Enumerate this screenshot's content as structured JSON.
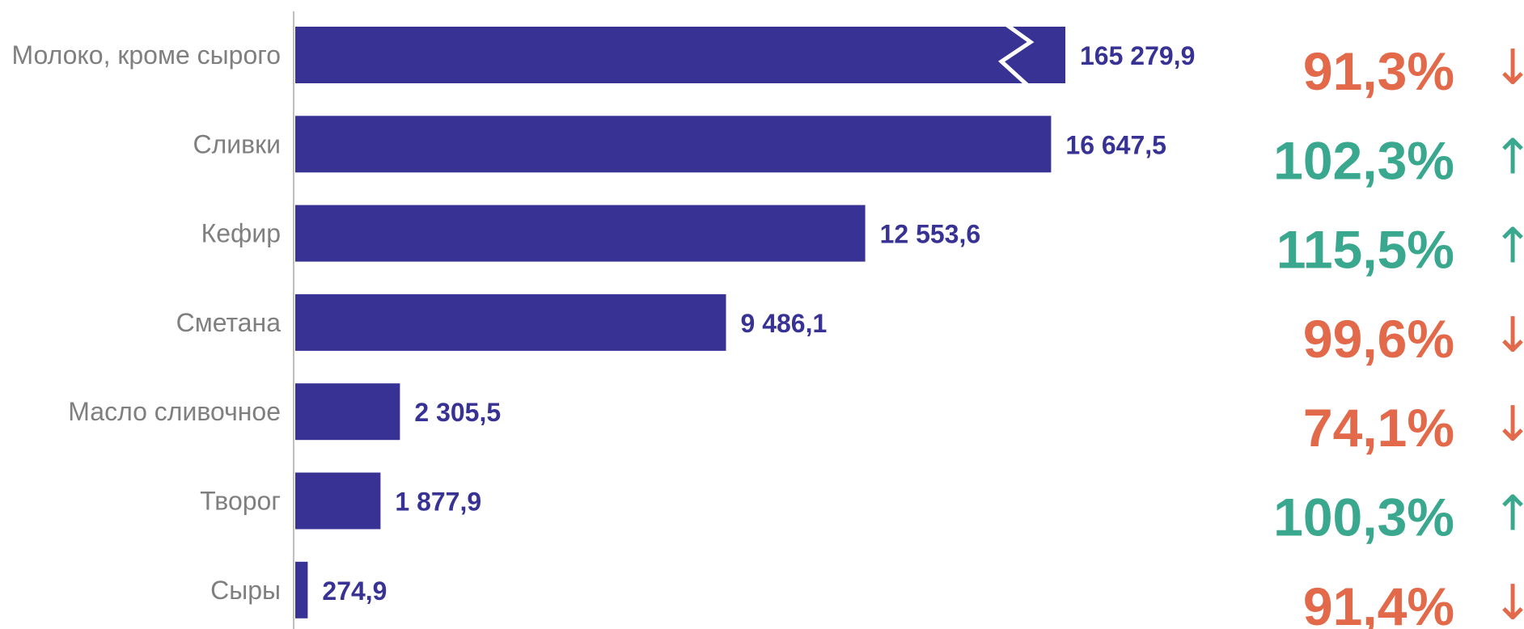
{
  "chart_data": {
    "type": "bar",
    "orientation": "horizontal",
    "axis_break": {
      "category": "Молоко, кроме сырого",
      "present": true
    },
    "categories": [
      "Молоко, кроме сырого",
      "Сливки",
      "Кефир",
      "Сметана",
      "Масло сливочное",
      "Творог",
      "Сыры"
    ],
    "values": [
      165279.9,
      16647.5,
      12553.6,
      9486.1,
      2305.5,
      1877.9,
      274.9
    ],
    "value_labels": [
      "165 279,9",
      "16 647,5",
      "12 553,6",
      "9 486,1",
      "2 305,5",
      "1 877,9",
      "274,9"
    ],
    "percent_labels": [
      "91,3%",
      "102,3%",
      "115,5%",
      "99,6%",
      "74,1%",
      "100,3%",
      "91,4%"
    ],
    "trend": [
      "down",
      "up",
      "up",
      "down",
      "down",
      "up",
      "down"
    ],
    "arrows": {
      "up": "↑",
      "down": "↓"
    },
    "colors": {
      "bar": "#373294",
      "value_text": "#373294",
      "up": "#3aa88e",
      "down": "#e2694a",
      "category_text": "#7f7f7f",
      "axis": "#bfbfbf"
    },
    "xlabel": "",
    "ylabel": "",
    "grid": false,
    "legend": false
  }
}
